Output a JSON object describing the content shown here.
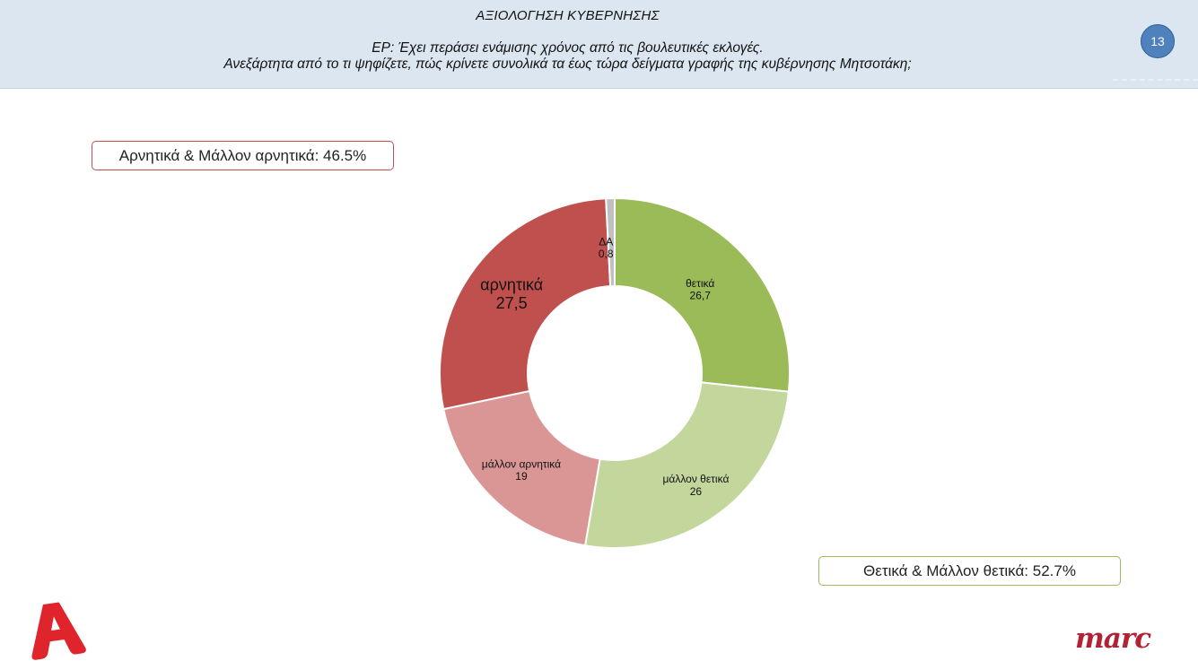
{
  "header": {
    "title": "ΑΞΙΟΛΟΓΗΣΗ ΚΥΒΕΡΝΗΣΗΣ",
    "question_line1": "ΕΡ: Έχει περάσει ενάμισης χρόνος  από τις βουλευτικές εκλογές.",
    "question_line2": "Ανεξάρτητα από το τι ψηφίζετε, πώς κρίνετε συνολικά τα έως τώρα δείγματα γραφής της κυβέρνησης Μητσοτάκη;",
    "page_number": "13"
  },
  "summary": {
    "negative": "Αρνητικά & Μάλλον αρνητικά: 46.5%",
    "positive": "Θετικά & Μάλλον θετικά: 52.7%"
  },
  "chart_data": {
    "type": "pie",
    "donut": true,
    "slices": [
      {
        "label": "θετικά",
        "value": 26.7,
        "value_text": "26,7",
        "color": "#9bbb59"
      },
      {
        "label": "μάλλον θετικά",
        "value": 26,
        "value_text": "26",
        "color": "#c3d69b"
      },
      {
        "label": "μάλλον αρνητικά",
        "value": 19,
        "value_text": "19",
        "color": "#da9694"
      },
      {
        "label": "αρνητικά",
        "value": 27.5,
        "value_text": "27,5",
        "color": "#c0504d"
      },
      {
        "label": "ΔΑ",
        "value": 0.8,
        "value_text": "0,8",
        "color": "#c0c0c0"
      }
    ]
  },
  "branding": {
    "left_logo": "Alpha",
    "right_logo": "marc",
    "left_logo_color": "#e0242c",
    "right_logo_color": "#b22234"
  }
}
